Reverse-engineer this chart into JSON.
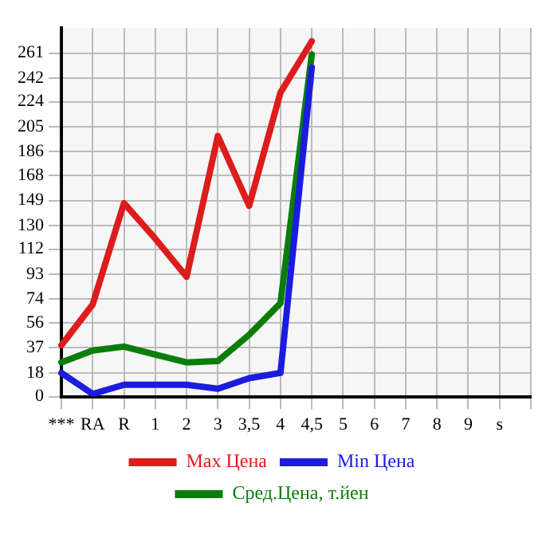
{
  "chart_data": {
    "type": "line",
    "categories": [
      "***",
      "RA",
      "R",
      "1",
      "2",
      "3",
      "3,5",
      "4",
      "4,5",
      "5",
      "6",
      "7",
      "8",
      "9",
      "s",
      null
    ],
    "series": [
      {
        "name": "Max Цена",
        "color": "#dd1c1c",
        "values": [
          39,
          70,
          147,
          120,
          91,
          198,
          145,
          231,
          270,
          null,
          null,
          null,
          null,
          null,
          null,
          null
        ]
      },
      {
        "name": "Min Цена",
        "color": "#1c1cdd",
        "values": [
          18,
          2,
          9,
          9,
          9,
          6,
          14,
          18,
          250,
          null,
          null,
          null,
          null,
          null,
          null,
          null
        ]
      },
      {
        "name": "Сред.Цена, т.йен",
        "color": "#0a7d0a",
        "values": [
          26,
          35,
          38,
          32,
          26,
          27,
          47,
          71,
          260,
          null,
          null,
          null,
          null,
          null,
          null,
          null
        ]
      }
    ],
    "ylim": [
      0,
      280
    ],
    "yticks": [
      0,
      18,
      37,
      56,
      74,
      93,
      112,
      130,
      149,
      168,
      186,
      205,
      224,
      242,
      261
    ],
    "grid": true,
    "legend": "bottom",
    "marker": "none",
    "line_style": "solid"
  }
}
